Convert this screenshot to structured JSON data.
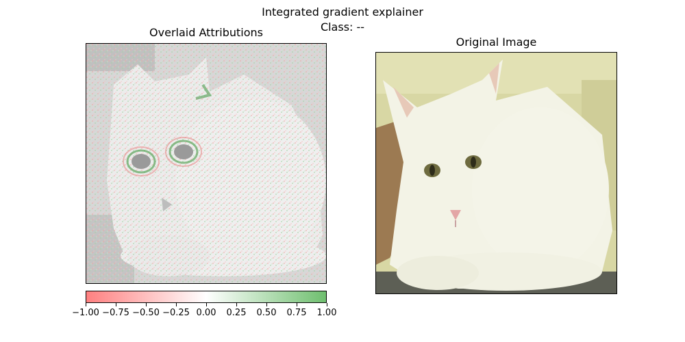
{
  "figure": {
    "title_line1": "Integrated gradient explainer",
    "title_line2": "Class: --"
  },
  "left_panel": {
    "title": "Overlaid Attributions",
    "image": "grayscale white cat with red/green pixel attribution overlay"
  },
  "right_panel": {
    "title": "Original Image",
    "image": "white cat lying down, greenish-beige wall background"
  },
  "colorbar": {
    "colors": {
      "negative": "#ff8080",
      "zero": "#ffffff",
      "positive": "#6fbf6f"
    },
    "ticks": [
      "−1.00",
      "−0.75",
      "−0.50",
      "−0.25",
      "0.00",
      "0.25",
      "0.50",
      "0.75",
      "1.00"
    ]
  }
}
